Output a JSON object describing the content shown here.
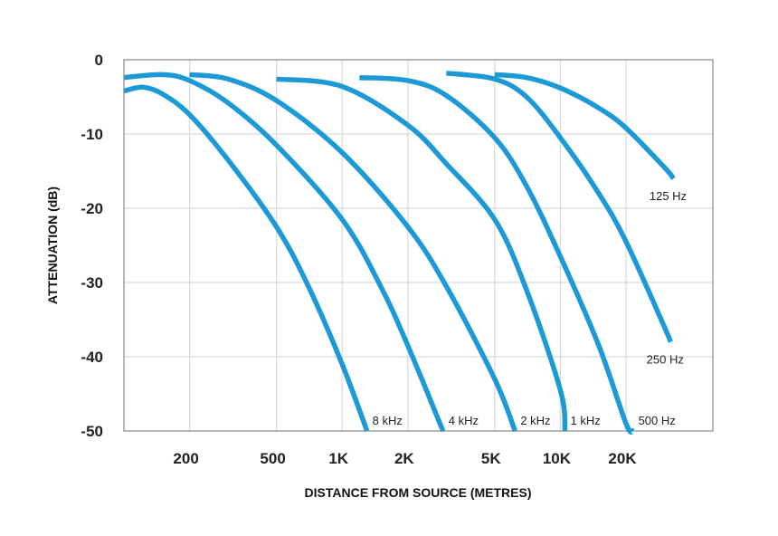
{
  "chart_data": {
    "type": "line",
    "title": "",
    "xlabel": "DISTANCE FROM SOURCE (METRES)",
    "ylabel": "ATTENUATION (dB)",
    "x_scale": "log",
    "xlim": [
      100,
      50000
    ],
    "ylim": [
      -50,
      0
    ],
    "x_ticks": [
      {
        "value": 200,
        "label": "200"
      },
      {
        "value": 500,
        "label": "500"
      },
      {
        "value": 1000,
        "label": "1K"
      },
      {
        "value": 2000,
        "label": "2K"
      },
      {
        "value": 5000,
        "label": "5K"
      },
      {
        "value": 10000,
        "label": "10K"
      },
      {
        "value": 20000,
        "label": "20K"
      }
    ],
    "y_ticks": [
      {
        "value": 0,
        "label": "0"
      },
      {
        "value": -10,
        "label": "-10"
      },
      {
        "value": -20,
        "label": "-20"
      },
      {
        "value": -30,
        "label": "-30"
      },
      {
        "value": -40,
        "label": "-40"
      },
      {
        "value": -50,
        "label": "-50"
      }
    ],
    "grid": true,
    "line_color": "#1d9ad6",
    "series": [
      {
        "name": "8 kHz",
        "points": [
          [
            100,
            -4.2
          ],
          [
            122,
            -3.7
          ],
          [
            150,
            -4.6
          ],
          [
            200,
            -7.4
          ],
          [
            300,
            -13.5
          ],
          [
            500,
            -22.5
          ],
          [
            700,
            -30.5
          ],
          [
            1000,
            -41
          ],
          [
            1300,
            -50
          ]
        ]
      },
      {
        "name": "4 kHz",
        "points": [
          [
            100,
            -2.4
          ],
          [
            150,
            -2.0
          ],
          [
            200,
            -2.8
          ],
          [
            300,
            -5.8
          ],
          [
            500,
            -11.5
          ],
          [
            1000,
            -21.5
          ],
          [
            1500,
            -30.5
          ],
          [
            2000,
            -38.5
          ],
          [
            2900,
            -50
          ]
        ]
      },
      {
        "name": "2 kHz",
        "points": [
          [
            200,
            -2.0
          ],
          [
            300,
            -2.6
          ],
          [
            500,
            -5.5
          ],
          [
            1000,
            -12.5
          ],
          [
            2000,
            -22.5
          ],
          [
            3000,
            -30.5
          ],
          [
            5000,
            -43
          ],
          [
            6200,
            -50
          ]
        ]
      },
      {
        "name": "1 kHz",
        "points": [
          [
            500,
            -2.6
          ],
          [
            1000,
            -3.6
          ],
          [
            2000,
            -8.8
          ],
          [
            3000,
            -14
          ],
          [
            5000,
            -21.5
          ],
          [
            7000,
            -31
          ],
          [
            10000,
            -44.5
          ],
          [
            10500,
            -50
          ]
        ]
      },
      {
        "name": "500 Hz",
        "points": [
          [
            1200,
            -2.4
          ],
          [
            2000,
            -2.8
          ],
          [
            3000,
            -4.8
          ],
          [
            5000,
            -10.5
          ],
          [
            7000,
            -17
          ],
          [
            10000,
            -26.5
          ],
          [
            15000,
            -38.5
          ],
          [
            20000,
            -49
          ],
          [
            21500,
            -50
          ]
        ]
      },
      {
        "name": "250 Hz",
        "points": [
          [
            3000,
            -1.8
          ],
          [
            5000,
            -2.6
          ],
          [
            7000,
            -5
          ],
          [
            10000,
            -10.5
          ],
          [
            15000,
            -18
          ],
          [
            20000,
            -24.5
          ],
          [
            30000,
            -36
          ],
          [
            32000,
            -38
          ]
        ]
      },
      {
        "name": "125 Hz",
        "points": [
          [
            5000,
            -2.0
          ],
          [
            7000,
            -2.4
          ],
          [
            10000,
            -3.8
          ],
          [
            15000,
            -6.5
          ],
          [
            20000,
            -9.2
          ],
          [
            30000,
            -14.5
          ],
          [
            33000,
            -16
          ]
        ]
      }
    ]
  }
}
